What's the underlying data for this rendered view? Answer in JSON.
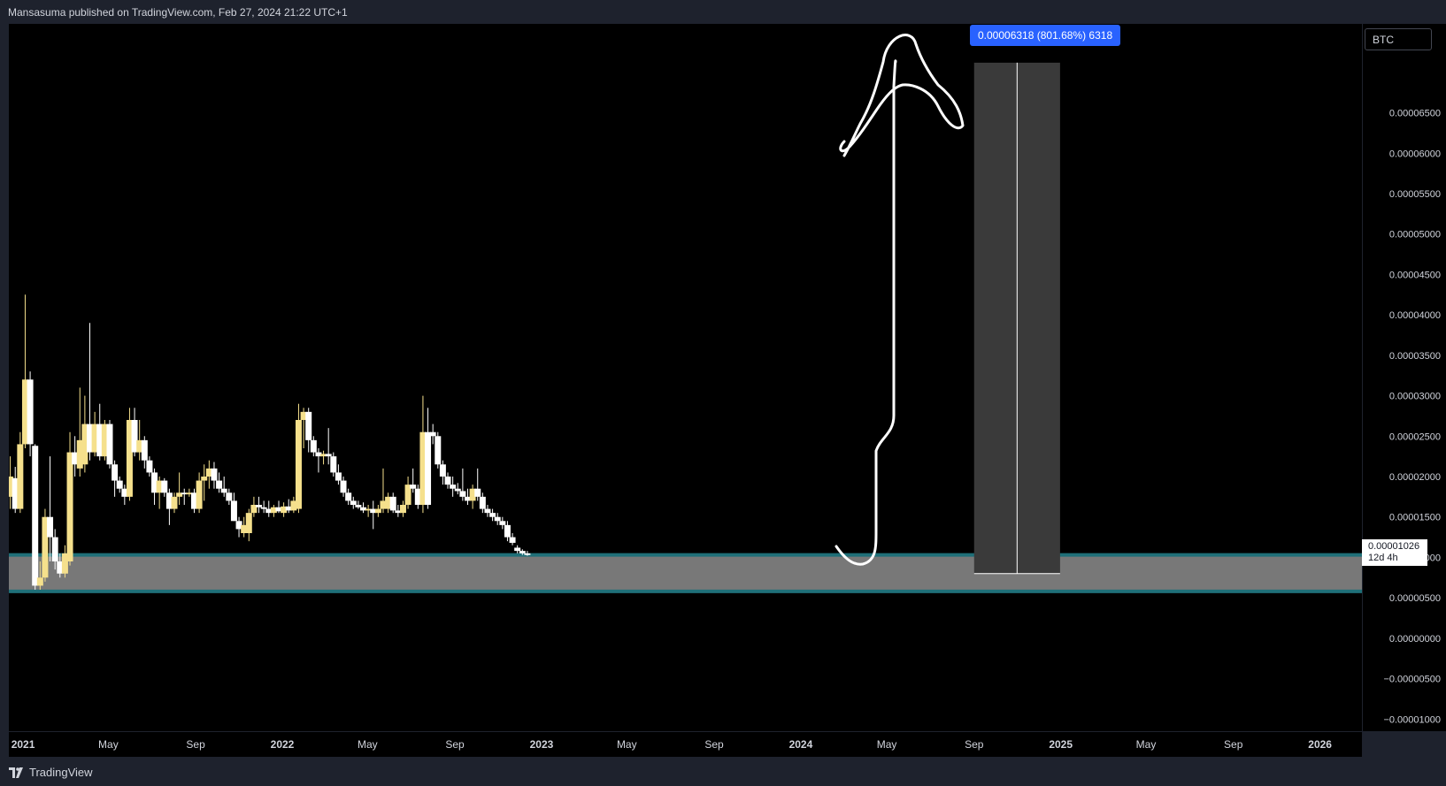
{
  "header": {
    "publisher_text": "Mansasuma published on TradingView.com, Feb 27, 2024 21:22 UTC+1"
  },
  "symbol": "BTC",
  "brand": {
    "name": "TradingView",
    "logo_icon": "tradingview-logo-icon"
  },
  "measure": {
    "label": "0.00006318 (801.68%) 6318"
  },
  "last_price": {
    "value": "0.00001026",
    "countdown": "12d 4h"
  },
  "icons": {
    "alert": "lightning-icon"
  },
  "colors": {
    "background": "#000000",
    "candle_up": "#f5e08c",
    "candle_down": "#ffffff",
    "zone_fill": "#787878",
    "zone_border": "#1f6f78",
    "measure_fill": "#3a3a3a",
    "measure_label": "#2962ff"
  },
  "chart_data": {
    "type": "candlestick",
    "title": "",
    "symbol": "BTC",
    "ylim": [
      -1.15e-05,
      7.6e-05
    ],
    "price_axis_ticks": [
      "0.00006500",
      "0.00006000",
      "0.00005500",
      "0.00005000",
      "0.00004500",
      "0.00004000",
      "0.00003500",
      "0.00003000",
      "0.00002500",
      "0.00002000",
      "0.00001500",
      "0.00001000",
      "0.00000500",
      "0.00000000",
      "−0.00000500",
      "−0.00001000"
    ],
    "time_axis_labels": [
      {
        "text": "2021",
        "bold": true,
        "date": "2021-01-01"
      },
      {
        "text": "May",
        "bold": false,
        "date": "2021-05-01"
      },
      {
        "text": "Sep",
        "bold": false,
        "date": "2021-09-01"
      },
      {
        "text": "2022",
        "bold": true,
        "date": "2022-01-01"
      },
      {
        "text": "May",
        "bold": false,
        "date": "2022-05-01"
      },
      {
        "text": "Sep",
        "bold": false,
        "date": "2022-09-01"
      },
      {
        "text": "2023",
        "bold": true,
        "date": "2023-01-01"
      },
      {
        "text": "May",
        "bold": false,
        "date": "2023-05-01"
      },
      {
        "text": "Sep",
        "bold": false,
        "date": "2023-09-01"
      },
      {
        "text": "2024",
        "bold": true,
        "date": "2024-01-01"
      },
      {
        "text": "May",
        "bold": false,
        "date": "2024-05-01"
      },
      {
        "text": "Sep",
        "bold": false,
        "date": "2024-09-01"
      },
      {
        "text": "2025",
        "bold": true,
        "date": "2025-01-01"
      },
      {
        "text": "May",
        "bold": false,
        "date": "2025-05-01"
      },
      {
        "text": "Sep",
        "bold": false,
        "date": "2025-09-01"
      },
      {
        "text": "2026",
        "bold": true,
        "date": "2026-01-01"
      }
    ],
    "support_zone": {
      "top": 1.03e-05,
      "bottom": 5.8e-06
    },
    "measure_range": {
      "start": "2024-09-01",
      "end": "2024-12-31",
      "from_price": 8e-06,
      "to_price": 7.12e-05
    },
    "last_price": 1.026e-05,
    "candles": [
      {
        "date": "2020-12-14",
        "o": 1.75e-05,
        "h": 2.25e-05,
        "l": 1.6e-05,
        "c": 2e-05
      },
      {
        "date": "2020-12-21",
        "o": 1.98e-05,
        "h": 2.12e-05,
        "l": 1.55e-05,
        "c": 1.6e-05
      },
      {
        "date": "2020-12-28",
        "o": 1.6e-05,
        "h": 2.55e-05,
        "l": 1.55e-05,
        "c": 2.4e-05
      },
      {
        "date": "2021-01-04",
        "o": 2.4e-05,
        "h": 4.25e-05,
        "l": 2.35e-05,
        "c": 3.2e-05
      },
      {
        "date": "2021-01-11",
        "o": 3.2e-05,
        "h": 3.3e-05,
        "l": 2.25e-05,
        "c": 2.4e-05
      },
      {
        "date": "2021-01-18",
        "o": 2.38e-05,
        "h": 2.4e-05,
        "l": 6e-06,
        "c": 6.5e-06
      },
      {
        "date": "2021-01-25",
        "o": 6.5e-06,
        "h": 9.5e-06,
        "l": 6e-06,
        "c": 7.5e-06
      },
      {
        "date": "2021-02-01",
        "o": 7.5e-06,
        "h": 1.6e-05,
        "l": 7e-06,
        "c": 1.5e-05
      },
      {
        "date": "2021-02-08",
        "o": 1.5e-05,
        "h": 2.25e-05,
        "l": 9.5e-06,
        "c": 1.25e-05
      },
      {
        "date": "2021-02-15",
        "o": 1.25e-05,
        "h": 1.35e-05,
        "l": 8.5e-06,
        "c": 9.5e-06
      },
      {
        "date": "2021-02-22",
        "o": 9.5e-06,
        "h": 1.05e-05,
        "l": 7.5e-06,
        "c": 8e-06
      },
      {
        "date": "2021-03-01",
        "o": 8e-06,
        "h": 1.15e-05,
        "l": 7.5e-06,
        "c": 1.05e-05
      },
      {
        "date": "2021-03-08",
        "o": 9.5e-06,
        "h": 2.55e-05,
        "l": 9e-06,
        "c": 2.3e-05
      },
      {
        "date": "2021-03-15",
        "o": 2.3e-05,
        "h": 2.5e-05,
        "l": 2e-05,
        "c": 2.15e-05
      },
      {
        "date": "2021-03-22",
        "o": 2.1e-05,
        "h": 3.1e-05,
        "l": 2e-05,
        "c": 2.45e-05
      },
      {
        "date": "2021-03-29",
        "o": 2.15e-05,
        "h": 3e-05,
        "l": 2.05e-05,
        "c": 2.65e-05
      },
      {
        "date": "2021-04-05",
        "o": 2.65e-05,
        "h": 3.9e-05,
        "l": 2.2e-05,
        "c": 2.3e-05
      },
      {
        "date": "2021-04-12",
        "o": 2.3e-05,
        "h": 2.8e-05,
        "l": 2.25e-05,
        "c": 2.65e-05
      },
      {
        "date": "2021-04-19",
        "o": 2.65e-05,
        "h": 2.9e-05,
        "l": 2.2e-05,
        "c": 2.25e-05
      },
      {
        "date": "2021-04-26",
        "o": 2.25e-05,
        "h": 2.7e-05,
        "l": 2.2e-05,
        "c": 2.65e-05
      },
      {
        "date": "2021-05-03",
        "o": 2.65e-05,
        "h": 2.7e-05,
        "l": 2.1e-05,
        "c": 2.15e-05
      },
      {
        "date": "2021-05-10",
        "o": 2.15e-05,
        "h": 2.2e-05,
        "l": 1.75e-05,
        "c": 1.95e-05
      },
      {
        "date": "2021-05-17",
        "o": 1.95e-05,
        "h": 2e-05,
        "l": 1.8e-05,
        "c": 1.85e-05
      },
      {
        "date": "2021-05-24",
        "o": 1.85e-05,
        "h": 1.9e-05,
        "l": 1.65e-05,
        "c": 1.75e-05
      },
      {
        "date": "2021-05-31",
        "o": 1.75e-05,
        "h": 2.85e-05,
        "l": 1.7e-05,
        "c": 2.7e-05
      },
      {
        "date": "2021-06-07",
        "o": 2.7e-05,
        "h": 2.85e-05,
        "l": 2.25e-05,
        "c": 2.3e-05
      },
      {
        "date": "2021-06-14",
        "o": 2.3e-05,
        "h": 2.7e-05,
        "l": 2.2e-05,
        "c": 2.45e-05
      },
      {
        "date": "2021-06-21",
        "o": 2.45e-05,
        "h": 2.5e-05,
        "l": 2.1e-05,
        "c": 2.2e-05
      },
      {
        "date": "2021-06-28",
        "o": 2.2e-05,
        "h": 2.25e-05,
        "l": 2e-05,
        "c": 2.05e-05
      },
      {
        "date": "2021-07-05",
        "o": 2.05e-05,
        "h": 2.1e-05,
        "l": 1.65e-05,
        "c": 1.8e-05
      },
      {
        "date": "2021-07-12",
        "o": 1.8e-05,
        "h": 2e-05,
        "l": 1.6e-05,
        "c": 1.95e-05
      },
      {
        "date": "2021-07-19",
        "o": 1.95e-05,
        "h": 1.98e-05,
        "l": 1.75e-05,
        "c": 1.8e-05
      },
      {
        "date": "2021-07-26",
        "o": 1.8e-05,
        "h": 1.85e-05,
        "l": 1.4e-05,
        "c": 1.6e-05
      },
      {
        "date": "2021-08-02",
        "o": 1.6e-05,
        "h": 1.8e-05,
        "l": 1.55e-05,
        "c": 1.75e-05
      },
      {
        "date": "2021-08-09",
        "o": 1.75e-05,
        "h": 2.05e-05,
        "l": 1.65e-05,
        "c": 1.8e-05
      },
      {
        "date": "2021-08-16",
        "o": 1.8e-05,
        "h": 1.85e-05,
        "l": 1.65e-05,
        "c": 1.78e-05
      },
      {
        "date": "2021-08-23",
        "o": 1.78e-05,
        "h": 1.85e-05,
        "l": 1.75e-05,
        "c": 1.8e-05
      },
      {
        "date": "2021-08-30",
        "o": 1.8e-05,
        "h": 1.85e-05,
        "l": 1.55e-05,
        "c": 1.6e-05
      },
      {
        "date": "2021-09-06",
        "o": 1.6e-05,
        "h": 2.05e-05,
        "l": 1.55e-05,
        "c": 1.95e-05
      },
      {
        "date": "2021-09-13",
        "o": 1.95e-05,
        "h": 2.15e-05,
        "l": 1.7e-05,
        "c": 2e-05
      },
      {
        "date": "2021-09-20",
        "o": 2e-05,
        "h": 2.2e-05,
        "l": 1.85e-05,
        "c": 2.1e-05
      },
      {
        "date": "2021-09-27",
        "o": 2.1e-05,
        "h": 2.18e-05,
        "l": 1.85e-05,
        "c": 1.95e-05
      },
      {
        "date": "2021-10-04",
        "o": 1.95e-05,
        "h": 2.05e-05,
        "l": 1.8e-05,
        "c": 1.85e-05
      },
      {
        "date": "2021-10-11",
        "o": 1.85e-05,
        "h": 2e-05,
        "l": 1.75e-05,
        "c": 1.8e-05
      },
      {
        "date": "2021-10-18",
        "o": 1.8e-05,
        "h": 1.85e-05,
        "l": 1.65e-05,
        "c": 1.7e-05
      },
      {
        "date": "2021-10-25",
        "o": 1.7e-05,
        "h": 1.8e-05,
        "l": 1.45e-05,
        "c": 1.45e-05
      },
      {
        "date": "2021-11-01",
        "o": 1.45e-05,
        "h": 1.5e-05,
        "l": 1.25e-05,
        "c": 1.35e-05
      },
      {
        "date": "2021-11-08",
        "o": 1.3e-05,
        "h": 1.5e-05,
        "l": 1.25e-05,
        "c": 1.4e-05
      },
      {
        "date": "2021-11-15",
        "o": 1.3e-05,
        "h": 1.6e-05,
        "l": 1.2e-05,
        "c": 1.55e-05
      },
      {
        "date": "2021-11-22",
        "o": 1.55e-05,
        "h": 1.75e-05,
        "l": 1.5e-05,
        "c": 1.65e-05
      },
      {
        "date": "2021-11-29",
        "o": 1.65e-05,
        "h": 1.75e-05,
        "l": 1.55e-05,
        "c": 1.62e-05
      },
      {
        "date": "2021-12-06",
        "o": 1.62e-05,
        "h": 1.7e-05,
        "l": 1.55e-05,
        "c": 1.6e-05
      },
      {
        "date": "2021-12-13",
        "o": 1.6e-05,
        "h": 1.7e-05,
        "l": 1.5e-05,
        "c": 1.55e-05
      },
      {
        "date": "2021-12-20",
        "o": 1.55e-05,
        "h": 1.65e-05,
        "l": 1.5e-05,
        "c": 1.62e-05
      },
      {
        "date": "2021-12-27",
        "o": 1.62e-05,
        "h": 1.7e-05,
        "l": 1.55e-05,
        "c": 1.57e-05
      },
      {
        "date": "2022-01-03",
        "o": 1.55e-05,
        "h": 1.68e-05,
        "l": 1.5e-05,
        "c": 1.63e-05
      },
      {
        "date": "2022-01-10",
        "o": 1.63e-05,
        "h": 1.72e-05,
        "l": 1.55e-05,
        "c": 1.58e-05
      },
      {
        "date": "2022-01-17",
        "o": 1.58e-05,
        "h": 1.75e-05,
        "l": 1.55e-05,
        "c": 1.7e-05
      },
      {
        "date": "2022-01-24",
        "o": 1.6e-05,
        "h": 2.9e-05,
        "l": 1.55e-05,
        "c": 2.7e-05
      },
      {
        "date": "2022-01-31",
        "o": 2.7e-05,
        "h": 2.85e-05,
        "l": 2.35e-05,
        "c": 2.8e-05
      },
      {
        "date": "2022-02-07",
        "o": 2.8e-05,
        "h": 2.85e-05,
        "l": 2.3e-05,
        "c": 2.45e-05
      },
      {
        "date": "2022-02-14",
        "o": 2.45e-05,
        "h": 2.5e-05,
        "l": 2.25e-05,
        "c": 2.3e-05
      },
      {
        "date": "2022-02-21",
        "o": 2.3e-05,
        "h": 2.35e-05,
        "l": 2.05e-05,
        "c": 2.25e-05
      },
      {
        "date": "2022-02-28",
        "o": 2.25e-05,
        "h": 2.32e-05,
        "l": 2.15e-05,
        "c": 2.28e-05
      },
      {
        "date": "2022-03-07",
        "o": 2.28e-05,
        "h": 2.6e-05,
        "l": 2.15e-05,
        "c": 2.25e-05
      },
      {
        "date": "2022-03-14",
        "o": 2.25e-05,
        "h": 2.3e-05,
        "l": 2e-05,
        "c": 2.05e-05
      },
      {
        "date": "2022-03-21",
        "o": 2.05e-05,
        "h": 2.15e-05,
        "l": 1.9e-05,
        "c": 1.95e-05
      },
      {
        "date": "2022-03-28",
        "o": 1.95e-05,
        "h": 2e-05,
        "l": 1.75e-05,
        "c": 1.8e-05
      },
      {
        "date": "2022-04-04",
        "o": 1.8e-05,
        "h": 1.85e-05,
        "l": 1.65e-05,
        "c": 1.7e-05
      },
      {
        "date": "2022-04-11",
        "o": 1.7e-05,
        "h": 1.75e-05,
        "l": 1.6e-05,
        "c": 1.65e-05
      },
      {
        "date": "2022-04-18",
        "o": 1.65e-05,
        "h": 1.7e-05,
        "l": 1.6e-05,
        "c": 1.62e-05
      },
      {
        "date": "2022-04-25",
        "o": 1.62e-05,
        "h": 1.68e-05,
        "l": 1.55e-05,
        "c": 1.58e-05
      },
      {
        "date": "2022-05-02",
        "o": 1.58e-05,
        "h": 1.65e-05,
        "l": 1.5e-05,
        "c": 1.6e-05
      },
      {
        "date": "2022-05-09",
        "o": 1.6e-05,
        "h": 1.7e-05,
        "l": 1.35e-05,
        "c": 1.55e-05
      },
      {
        "date": "2022-05-16",
        "o": 1.55e-05,
        "h": 1.65e-05,
        "l": 1.5e-05,
        "c": 1.6e-05
      },
      {
        "date": "2022-05-23",
        "o": 1.6e-05,
        "h": 2.1e-05,
        "l": 1.55e-05,
        "c": 1.7e-05
      },
      {
        "date": "2022-05-30",
        "o": 1.6e-05,
        "h": 1.8e-05,
        "l": 1.55e-05,
        "c": 1.75e-05
      },
      {
        "date": "2022-06-06",
        "o": 1.75e-05,
        "h": 1.8e-05,
        "l": 1.55e-05,
        "c": 1.58e-05
      },
      {
        "date": "2022-06-13",
        "o": 1.58e-05,
        "h": 1.65e-05,
        "l": 1.5e-05,
        "c": 1.55e-05
      },
      {
        "date": "2022-06-20",
        "o": 1.55e-05,
        "h": 1.7e-05,
        "l": 1.5e-05,
        "c": 1.65e-05
      },
      {
        "date": "2022-06-27",
        "o": 1.65e-05,
        "h": 2e-05,
        "l": 1.6e-05,
        "c": 1.9e-05
      },
      {
        "date": "2022-07-04",
        "o": 1.9e-05,
        "h": 2.1e-05,
        "l": 1.8e-05,
        "c": 1.85e-05
      },
      {
        "date": "2022-07-11",
        "o": 1.85e-05,
        "h": 1.9e-05,
        "l": 1.6e-05,
        "c": 1.65e-05
      },
      {
        "date": "2022-07-18",
        "o": 1.65e-05,
        "h": 3e-05,
        "l": 1.55e-05,
        "c": 2.55e-05
      },
      {
        "date": "2022-07-25",
        "o": 2.55e-05,
        "h": 2.85e-05,
        "l": 1.6e-05,
        "c": 1.65e-05
      },
      {
        "date": "2022-08-01",
        "o": 2.55e-05,
        "h": 2.65e-05,
        "l": 2.4e-05,
        "c": 2.5e-05
      },
      {
        "date": "2022-08-08",
        "o": 2.5e-05,
        "h": 2.55e-05,
        "l": 2.1e-05,
        "c": 2.15e-05
      },
      {
        "date": "2022-08-15",
        "o": 2.15e-05,
        "h": 2.2e-05,
        "l": 1.9e-05,
        "c": 2e-05
      },
      {
        "date": "2022-08-22",
        "o": 2e-05,
        "h": 2.05e-05,
        "l": 1.85e-05,
        "c": 1.9e-05
      },
      {
        "date": "2022-08-29",
        "o": 1.9e-05,
        "h": 2e-05,
        "l": 1.75e-05,
        "c": 1.85e-05
      },
      {
        "date": "2022-09-05",
        "o": 1.85e-05,
        "h": 1.92e-05,
        "l": 1.78e-05,
        "c": 1.82e-05
      },
      {
        "date": "2022-09-12",
        "o": 1.82e-05,
        "h": 2.1e-05,
        "l": 1.7e-05,
        "c": 1.75e-05
      },
      {
        "date": "2022-09-19",
        "o": 1.75e-05,
        "h": 1.85e-05,
        "l": 1.65e-05,
        "c": 1.7e-05
      },
      {
        "date": "2022-09-26",
        "o": 1.7e-05,
        "h": 1.9e-05,
        "l": 1.6e-05,
        "c": 1.85e-05
      },
      {
        "date": "2022-10-03",
        "o": 1.85e-05,
        "h": 2.1e-05,
        "l": 1.7e-05,
        "c": 1.75e-05
      },
      {
        "date": "2022-10-10",
        "o": 1.75e-05,
        "h": 1.8e-05,
        "l": 1.55e-05,
        "c": 1.6e-05
      },
      {
        "date": "2022-10-17",
        "o": 1.6e-05,
        "h": 1.65e-05,
        "l": 1.5e-05,
        "c": 1.55e-05
      },
      {
        "date": "2022-10-24",
        "o": 1.55e-05,
        "h": 1.6e-05,
        "l": 1.45e-05,
        "c": 1.5e-05
      },
      {
        "date": "2022-10-31",
        "o": 1.5e-05,
        "h": 1.55e-05,
        "l": 1.4e-05,
        "c": 1.45e-05
      },
      {
        "date": "2022-11-07",
        "o": 1.45e-05,
        "h": 1.5e-05,
        "l": 1.35e-05,
        "c": 1.4e-05
      },
      {
        "date": "2022-11-14",
        "o": 1.4e-05,
        "h": 1.45e-05,
        "l": 1.2e-05,
        "c": 1.25e-05
      },
      {
        "date": "2022-11-21",
        "o": 1.25e-05,
        "h": 1.3e-05,
        "l": 1.15e-05,
        "c": 1.18e-05
      },
      {
        "date": "2022-11-28",
        "o": 1.12e-05,
        "h": 1.15e-05,
        "l": 1.05e-05,
        "c": 1.08e-05
      },
      {
        "date": "2022-12-05",
        "o": 1.08e-05,
        "h": 1.1e-05,
        "l": 1.03e-05,
        "c": 1.05e-05
      },
      {
        "date": "2022-12-12",
        "o": 1.05e-05,
        "h": 1.08e-05,
        "l": 1.02e-05,
        "c": 1.03e-05
      }
    ]
  }
}
